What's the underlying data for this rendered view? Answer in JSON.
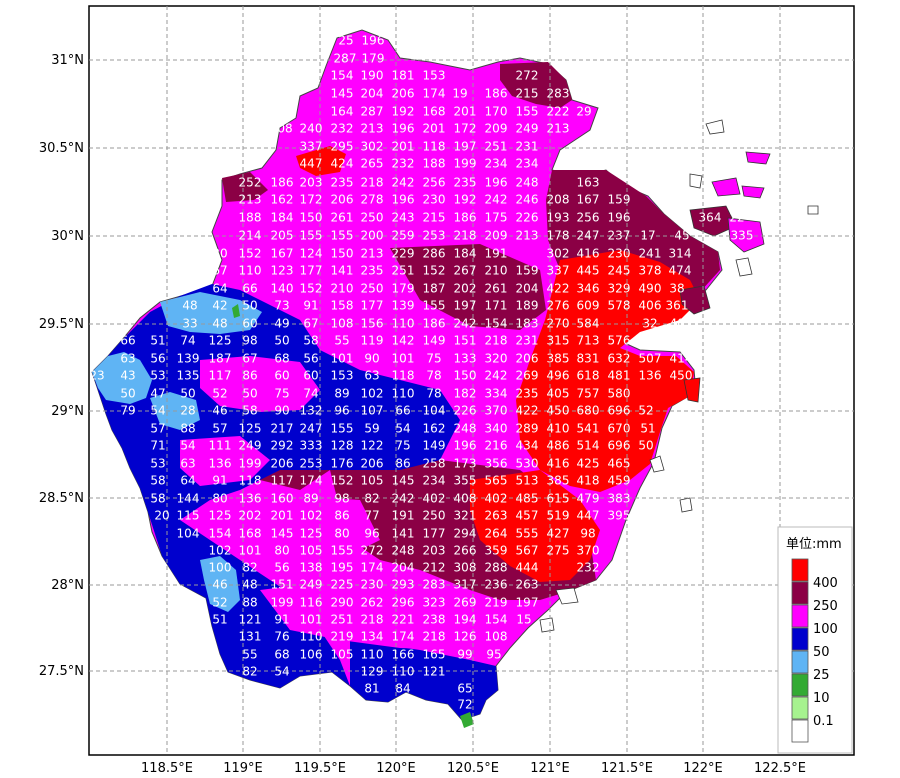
{
  "map": {
    "lat_labels": [
      "31°N",
      "30.5°N",
      "30°N",
      "29.5°N",
      "29°N",
      "28.5°N",
      "28°N",
      "27.5°N"
    ],
    "lon_labels": [
      "118.5°E",
      "119°E",
      "119.5°E",
      "120°E",
      "120.5°E",
      "121°E",
      "121.5°E",
      "122°E",
      "122.5°E"
    ]
  },
  "legend": {
    "title": "单位:mm",
    "items": [
      {
        "label": "400",
        "color": "#ff0000"
      },
      {
        "label": "250",
        "color": "#8b0045"
      },
      {
        "label": "100",
        "color": "#ff00ff"
      },
      {
        "label": "50",
        "color": "#0000cd"
      },
      {
        "label": "25",
        "color": "#5fb4f4"
      },
      {
        "label": "10",
        "color": "#33aa33"
      },
      {
        "label": "0.1",
        "color": "#a6f28f"
      },
      {
        "label": "",
        "color": "#ffffff"
      }
    ]
  },
  "values": [
    {
      "row": 0,
      "items": [
        "25",
        "196"
      ]
    },
    {
      "row": 1,
      "items": [
        "287",
        "179"
      ]
    },
    {
      "row": 2,
      "items": [
        "154",
        "190",
        "181",
        "153",
        "272"
      ]
    },
    {
      "row": 3,
      "items": [
        "145",
        "204",
        "206",
        "174",
        "19",
        "186",
        "215",
        "283"
      ]
    },
    {
      "row": 4,
      "items": [
        "164",
        "287",
        "192",
        "168",
        "201",
        "170",
        "155",
        "222",
        "29"
      ]
    },
    {
      "row": 5,
      "items": [
        "08",
        "240",
        "232",
        "213",
        "196",
        "201",
        "172",
        "209",
        "249",
        "213"
      ]
    },
    {
      "row": 6,
      "items": [
        "337",
        "295",
        "302",
        "201",
        "118",
        "197",
        "251",
        "231"
      ]
    },
    {
      "row": 7,
      "items": [
        "447",
        "424",
        "265",
        "232",
        "188",
        "199",
        "234",
        "234"
      ]
    },
    {
      "row": 8,
      "items": [
        "252",
        "186",
        "203",
        "235",
        "218",
        "242",
        "256",
        "235",
        "196",
        "248",
        "163"
      ]
    },
    {
      "row": 9,
      "items": [
        "213",
        "162",
        "172",
        "206",
        "278",
        "196",
        "230",
        "192",
        "242",
        "246",
        "208",
        "167",
        "159"
      ]
    },
    {
      "row": 10,
      "items": [
        "188",
        "184",
        "150",
        "261",
        "250",
        "243",
        "215",
        "186",
        "175",
        "226",
        "193",
        "256",
        "196",
        "364",
        "22"
      ]
    },
    {
      "row": 11,
      "items": [
        "214",
        "205",
        "155",
        "155",
        "200",
        "259",
        "253",
        "218",
        "209",
        "213",
        "178",
        "247",
        "237",
        "17",
        "45",
        "335"
      ]
    },
    {
      "row": 12,
      "items": [
        "30",
        "152",
        "167",
        "124",
        "150",
        "213",
        "229",
        "286",
        "184",
        "191",
        "302",
        "416",
        "230",
        "241",
        "314"
      ]
    },
    {
      "row": 13,
      "items": [
        "67",
        "110",
        "123",
        "177",
        "141",
        "235",
        "251",
        "152",
        "267",
        "210",
        "159",
        "337",
        "445",
        "245",
        "378",
        "474"
      ]
    },
    {
      "row": 14,
      "items": [
        "64",
        "66",
        "140",
        "152",
        "210",
        "250",
        "179",
        "187",
        "202",
        "261",
        "204",
        "422",
        "346",
        "329",
        "490",
        "38"
      ]
    },
    {
      "row": 15,
      "items": [
        "48",
        "42",
        "50",
        "73",
        "91",
        "158",
        "177",
        "139",
        "155",
        "197",
        "171",
        "189",
        "276",
        "609",
        "578",
        "406",
        "361"
      ]
    },
    {
      "row": 16,
      "items": [
        "33",
        "48",
        "60",
        "49",
        "67",
        "108",
        "156",
        "110",
        "186",
        "242",
        "154",
        "183",
        "270",
        "584",
        "32",
        "407"
      ]
    },
    {
      "row": 17,
      "items": [
        "66",
        "51",
        "74",
        "125",
        "98",
        "50",
        "58",
        "55",
        "119",
        "142",
        "149",
        "151",
        "218",
        "231",
        "315",
        "713",
        "576",
        "637",
        "397"
      ]
    },
    {
      "row": 18,
      "items": [
        "63",
        "56",
        "139",
        "187",
        "67",
        "68",
        "56",
        "101",
        "90",
        "101",
        "75",
        "133",
        "320",
        "206",
        "385",
        "831",
        "632",
        "507",
        "414"
      ]
    },
    {
      "row": 19,
      "items": [
        "23",
        "43",
        "53",
        "135",
        "117",
        "86",
        "60",
        "60",
        "153",
        "63",
        "118",
        "78",
        "150",
        "242",
        "269",
        "496",
        "618",
        "481",
        "136",
        "450"
      ]
    },
    {
      "row": 20,
      "items": [
        "50",
        "47",
        "50",
        "52",
        "50",
        "75",
        "74",
        "89",
        "102",
        "110",
        "78",
        "182",
        "334",
        "235",
        "405",
        "757",
        "580"
      ]
    },
    {
      "row": 21,
      "items": [
        "79",
        "54",
        "28",
        "46",
        "58",
        "90",
        "132",
        "96",
        "107",
        "66",
        "104",
        "226",
        "370",
        "422",
        "450",
        "680",
        "696",
        "52"
      ]
    },
    {
      "row": 22,
      "items": [
        "57",
        "88",
        "57",
        "125",
        "217",
        "247",
        "155",
        "59",
        "54",
        "162",
        "248",
        "340",
        "289",
        "410",
        "541",
        "670",
        "51"
      ]
    },
    {
      "row": 23,
      "items": [
        "71",
        "54",
        "111",
        "249",
        "292",
        "333",
        "128",
        "122",
        "75",
        "149",
        "196",
        "216",
        "434",
        "486",
        "514",
        "696",
        "50"
      ]
    },
    {
      "row": 24,
      "items": [
        "53",
        "63",
        "136",
        "199",
        "206",
        "253",
        "176",
        "206",
        "86",
        "258",
        "173",
        "356",
        "530",
        "416",
        "425",
        "465"
      ]
    },
    {
      "row": 25,
      "items": [
        "58",
        "64",
        "91",
        "118",
        "117",
        "174",
        "152",
        "105",
        "145",
        "234",
        "355",
        "565",
        "513",
        "385",
        "418",
        "459"
      ]
    },
    {
      "row": 26,
      "items": [
        "58",
        "144",
        "80",
        "136",
        "160",
        "89",
        "98",
        "82",
        "242",
        "402",
        "408",
        "402",
        "485",
        "615",
        "479",
        "383"
      ]
    },
    {
      "row": 27,
      "items": [
        "20",
        "115",
        "125",
        "202",
        "201",
        "102",
        "86",
        "77",
        "191",
        "250",
        "321",
        "263",
        "457",
        "519",
        "447",
        "395"
      ]
    },
    {
      "row": 28,
      "items": [
        "104",
        "154",
        "168",
        "145",
        "125",
        "80",
        "96",
        "141",
        "177",
        "294",
        "264",
        "555",
        "427",
        "98"
      ]
    },
    {
      "row": 29,
      "items": [
        "102",
        "101",
        "80",
        "105",
        "155",
        "272",
        "248",
        "203",
        "266",
        "359",
        "567",
        "275",
        "370"
      ]
    },
    {
      "row": 30,
      "items": [
        "100",
        "82",
        "56",
        "138",
        "195",
        "174",
        "204",
        "212",
        "308",
        "288",
        "444",
        "232"
      ]
    },
    {
      "row": 31,
      "items": [
        "46",
        "48",
        "151",
        "249",
        "225",
        "230",
        "293",
        "283",
        "317",
        "236",
        "263"
      ]
    },
    {
      "row": 32,
      "items": [
        "52",
        "88",
        "199",
        "116",
        "290",
        "262",
        "296",
        "323",
        "269",
        "219",
        "197"
      ]
    },
    {
      "row": 33,
      "items": [
        "51",
        "121",
        "91",
        "101",
        "251",
        "218",
        "221",
        "238",
        "194",
        "154",
        "15"
      ]
    },
    {
      "row": 34,
      "items": [
        "131",
        "76",
        "110",
        "219",
        "134",
        "174",
        "218",
        "126",
        "108"
      ]
    },
    {
      "row": 35,
      "items": [
        "55",
        "68",
        "106",
        "105",
        "110",
        "166",
        "165",
        "99",
        "95"
      ]
    },
    {
      "row": 36,
      "items": [
        "82",
        "54",
        "129",
        "110",
        "121"
      ]
    },
    {
      "row": 37,
      "items": [
        "81",
        "84",
        "65"
      ]
    },
    {
      "row": 38,
      "items": [
        "72"
      ]
    }
  ]
}
